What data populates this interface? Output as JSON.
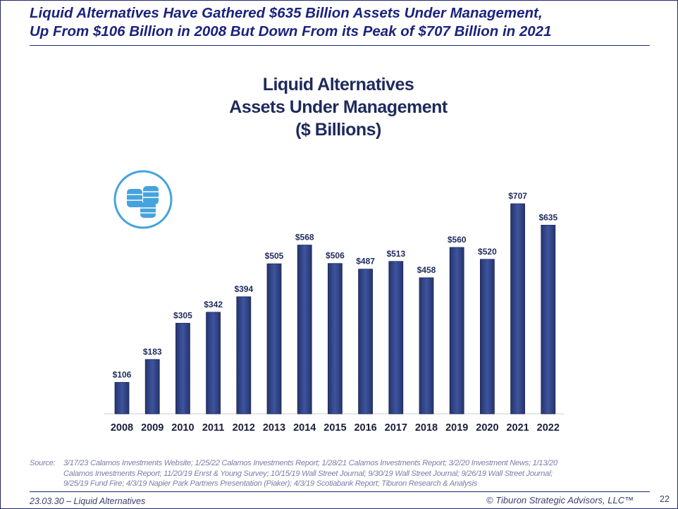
{
  "headline": {
    "line1": "Liquid Alternatives Have Gathered $635 Billion Assets Under Management,",
    "line2": "Up From $106 Billion in 2008 But Down From its Peak of $707 Billion in 2021"
  },
  "chart_data": {
    "type": "bar",
    "title": [
      "Liquid Alternatives",
      "Assets Under Management",
      "($ Billions)"
    ],
    "categories": [
      "2008",
      "2009",
      "2010",
      "2011",
      "2012",
      "2013",
      "2014",
      "2015",
      "2016",
      "2017",
      "2018",
      "2019",
      "2020",
      "2021",
      "2022"
    ],
    "values": [
      106,
      183,
      305,
      342,
      394,
      505,
      568,
      506,
      487,
      513,
      458,
      560,
      520,
      707,
      635
    ],
    "data_labels": [
      "$106",
      "$183",
      "$305",
      "$342",
      "$394",
      "$505",
      "$568",
      "$506",
      "$487",
      "$513",
      "$458",
      "$560",
      "$520",
      "$707",
      "$635"
    ],
    "xlabel": "",
    "ylabel": "",
    "ylim": [
      0,
      707
    ],
    "bar_color": "#2e3f7a",
    "icon": "coins-icon"
  },
  "source": {
    "label": "Source:",
    "line1": "3/17/23 Calamos Investments Website; 1/25/22 Calamos Investments Report; 1/28/21 Calamos Investments Report; 3/2/20 Investment News; 1/13/20",
    "line2": "Calamos Investments Report; 11/20/19 Enrst & Young Survey; 10/15/19 Wall Street Journal; 9/30/19 Wall Street Journal; 9/26/19 Wall Street Journal;",
    "line3": "9/25/19 Fund Fire; 4/3/19 Napier Park Partners Presentation (Piaker); 4/3/19 Scotiabank Report; Tiburon Research & Analysis"
  },
  "footer": {
    "left": "23.03.30 – Liquid Alternatives",
    "right": "© Tiburon Strategic Advisors, LLC™",
    "page": "22"
  }
}
